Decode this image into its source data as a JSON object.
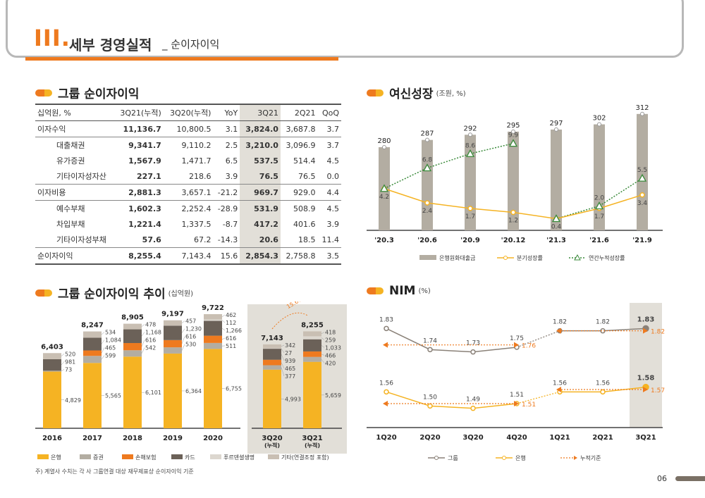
{
  "header": {
    "roman": "III.",
    "title": "세부 경영실적",
    "subtitle": "_ 순이자이익"
  },
  "table": {
    "section_title": "그룹 순이자이익",
    "columns": [
      "십억원, %",
      "3Q21(누적)",
      "3Q20(누적)",
      "YoY",
      "3Q21",
      "2Q21",
      "QoQ"
    ],
    "rows": [
      {
        "label": "이자수익",
        "sub": false,
        "grp": true,
        "values": [
          "11,136.7",
          "10,800.5",
          "3.1",
          "3,824.0",
          "3,687.8",
          "3.7"
        ]
      },
      {
        "label": "대출채권",
        "sub": true,
        "grp": true,
        "values": [
          "9,341.7",
          "9,110.2",
          "2.5",
          "3,210.0",
          "3,096.9",
          "3.7"
        ]
      },
      {
        "label": "유가증권",
        "sub": true,
        "grp": false,
        "values": [
          "1,567.9",
          "1,471.7",
          "6.5",
          "537.5",
          "514.4",
          "4.5"
        ]
      },
      {
        "label": "기타이자성자산",
        "sub": true,
        "grp": false,
        "values": [
          "227.1",
          "218.6",
          "3.9",
          "76.5",
          "76.5",
          "0.0"
        ]
      },
      {
        "label": "이자비용",
        "sub": false,
        "grp": true,
        "values": [
          "2,881.3",
          "3,657.1",
          "-21.2",
          "969.7",
          "929.0",
          "4.4"
        ]
      },
      {
        "label": "예수부채",
        "sub": true,
        "grp": true,
        "values": [
          "1,602.3",
          "2,252.4",
          "-28.9",
          "531.9",
          "508.9",
          "4.5"
        ]
      },
      {
        "label": "차입부채",
        "sub": true,
        "grp": false,
        "values": [
          "1,221.4",
          "1,337.5",
          "-8.7",
          "417.2",
          "401.6",
          "3.9"
        ]
      },
      {
        "label": "기타이자성부채",
        "sub": true,
        "grp": false,
        "values": [
          "57.6",
          "67.2",
          "-14.3",
          "20.6",
          "18.5",
          "11.4"
        ]
      },
      {
        "label": "순이자이익",
        "sub": false,
        "grp": true,
        "values": [
          "8,255.4",
          "7,143.4",
          "15.6",
          "2,854.3",
          "2,758.8",
          "3.5"
        ]
      }
    ]
  },
  "loans": {
    "section_title": "여신성장",
    "unit": "(조원, %)",
    "chart_data": {
      "type": "bar",
      "categories": [
        "'20.3",
        "'20.6",
        "'20.9",
        "'20.12",
        "'21.3",
        "'21.6",
        "'21.9"
      ],
      "bar_values": [
        280,
        287,
        292,
        295,
        297,
        302,
        312
      ],
      "quarterly_growth": [
        4.2,
        2.4,
        1.7,
        1.2,
        0.4,
        1.7,
        3.4
      ],
      "annual_growth": [
        4.2,
        6.8,
        8.6,
        9.9,
        0.4,
        2.0,
        5.5
      ],
      "legend": [
        "은행원화대출금",
        "분기성장률",
        "연간누적성장률"
      ],
      "colors": {
        "bar": "#b3ada2",
        "quarterly": "#f5b323",
        "annual": "#3a8a3a"
      }
    }
  },
  "trend": {
    "section_title": "그룹 순이자이익 추이",
    "unit": "(십억원)",
    "growth_label": "15.6%",
    "chart_data": {
      "type": "bar",
      "categories": [
        "2016",
        "2017",
        "2018",
        "2019",
        "2020",
        "3Q20\n(누적)",
        "3Q21\n(누적)"
      ],
      "totals": [
        6403,
        8247,
        8905,
        9197,
        9722,
        7143,
        8255
      ],
      "series": [
        {
          "name": "은행",
          "values": [
            4829,
            5565,
            6101,
            6364,
            6755,
            4993,
            5659
          ]
        },
        {
          "name": "증권",
          "values": [
            73,
            599,
            542,
            530,
            511,
            377,
            420
          ]
        },
        {
          "name": "손해보험",
          "values": [
            null,
            465,
            616,
            616,
            616,
            465,
            466
          ]
        },
        {
          "name": "카드",
          "values": [
            981,
            1084,
            1168,
            1230,
            1266,
            939,
            1033
          ]
        },
        {
          "name": "푸르덴셜생명",
          "values": [
            null,
            null,
            null,
            null,
            112,
            27,
            259
          ]
        },
        {
          "name": "기타(연결조정 포함)",
          "values": [
            520,
            534,
            478,
            457,
            462,
            342,
            418
          ]
        }
      ],
      "colors": [
        "#f5b323",
        "#b3ada2",
        "#ee7a1f",
        "#6b6158",
        "#dcd7cf",
        "#c9bfb3"
      ]
    }
  },
  "nim": {
    "section_title": "NIM",
    "unit": "(%)",
    "chart_data": {
      "type": "line",
      "categories": [
        "1Q20",
        "2Q20",
        "3Q20",
        "4Q20",
        "1Q21",
        "2Q21",
        "3Q21"
      ],
      "series": [
        {
          "name": "그룹",
          "values": [
            1.83,
            1.74,
            1.73,
            1.75,
            1.82,
            1.82,
            1.83
          ]
        },
        {
          "name": "은행",
          "values": [
            1.56,
            1.5,
            1.49,
            1.51,
            1.56,
            1.56,
            1.58
          ]
        }
      ],
      "cumulative": [
        {
          "label": "1.76",
          "value": 1.76
        },
        {
          "label": "1.82",
          "value": 1.82
        },
        {
          "label": "1.51",
          "value": 1.51
        },
        {
          "label": "1.57",
          "value": 1.57
        }
      ],
      "legend": [
        "그룹",
        "은행",
        "누적기준"
      ],
      "colors": {
        "group": "#8a8178",
        "bank": "#f5b323",
        "cumulative": "#ee7a1f"
      }
    }
  },
  "footer": {
    "note": "주) 계열사 수치는 각 사 그룹연결 대상 재무제표상 순이자이익 기준",
    "page": "06"
  }
}
